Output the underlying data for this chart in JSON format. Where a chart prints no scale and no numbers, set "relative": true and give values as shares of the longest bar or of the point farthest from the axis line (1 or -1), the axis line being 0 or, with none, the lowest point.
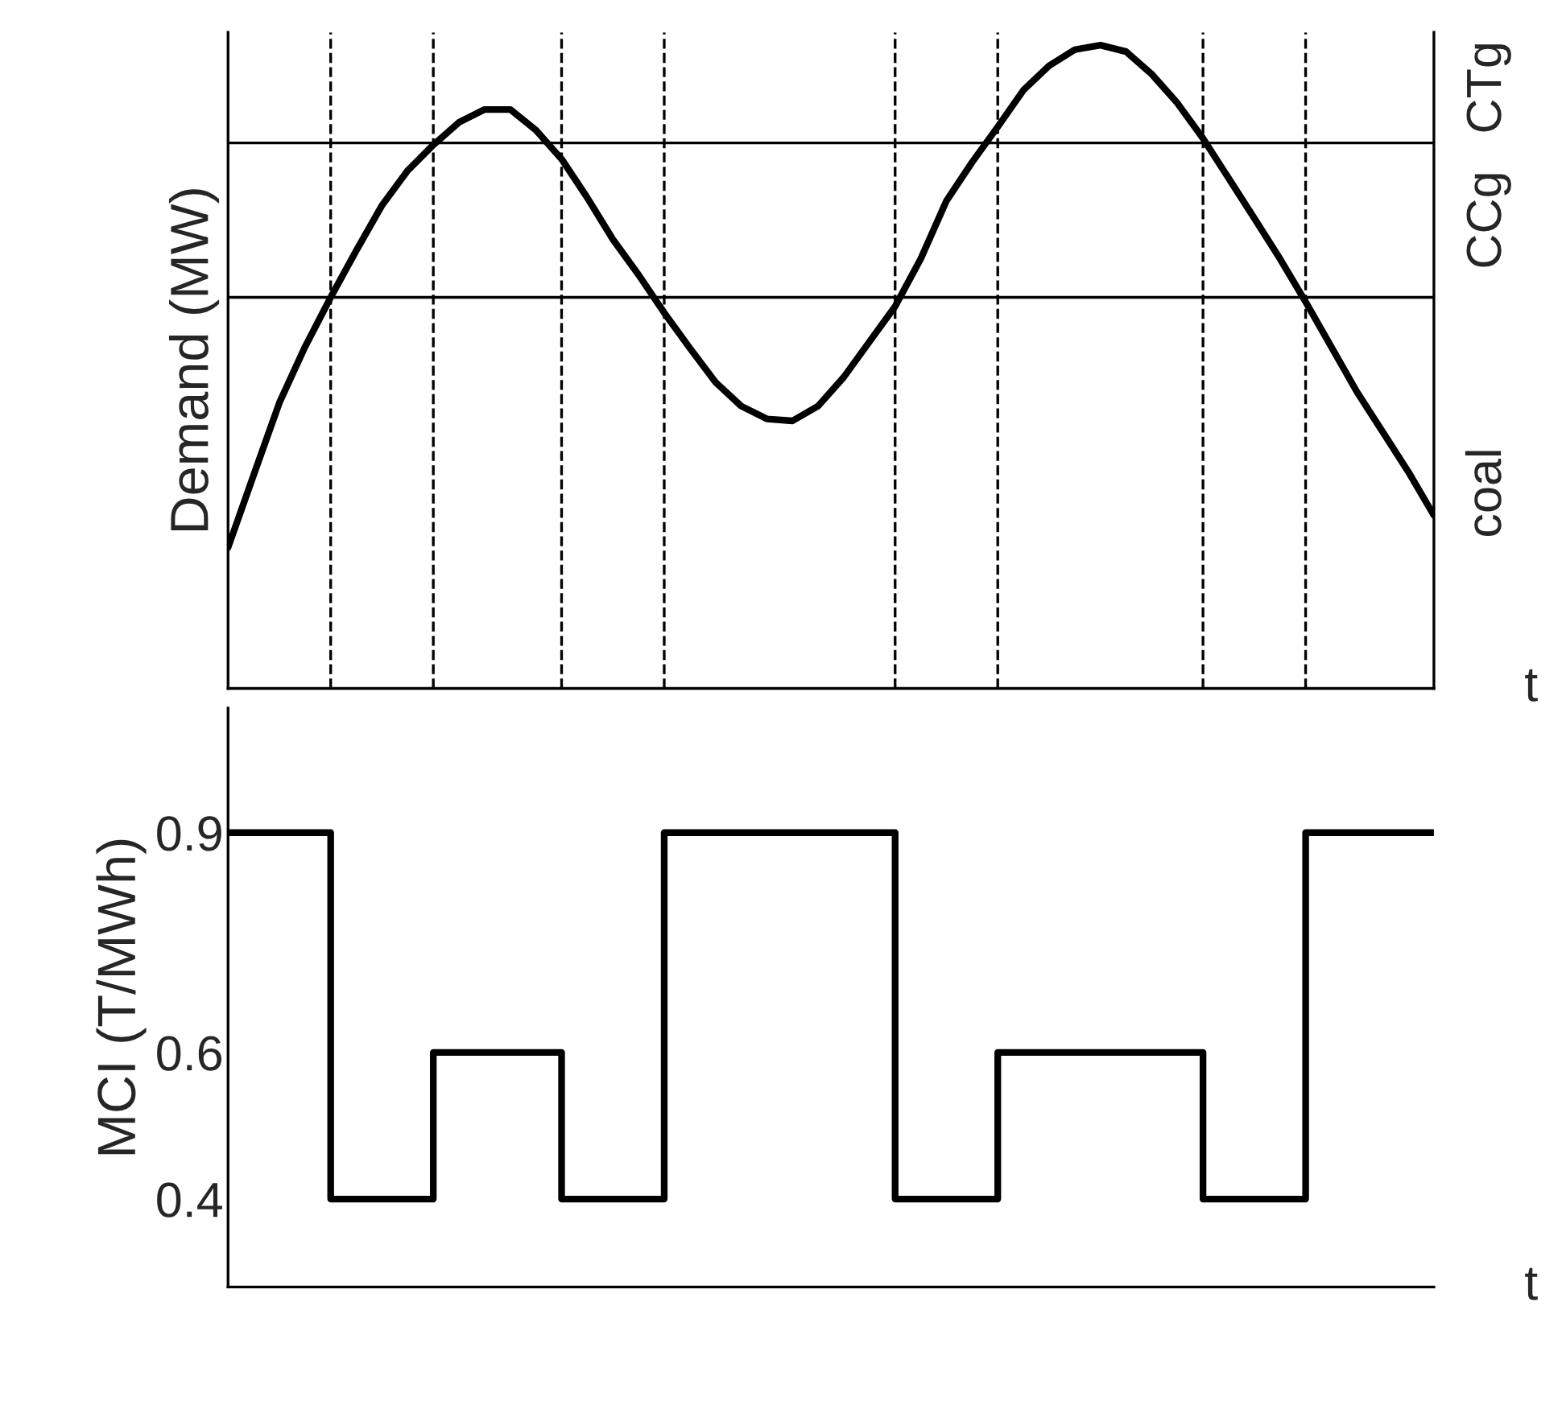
{
  "chart_data": [
    {
      "type": "line",
      "relative": true,
      "ylabel": "Demand (MW)",
      "xlabel": "t",
      "tick_labels": false,
      "grid": "x",
      "legend": false,
      "categories": [
        null,
        null,
        null,
        null,
        null,
        null,
        null,
        null,
        null,
        null,
        null,
        null,
        null,
        null,
        null,
        null,
        null,
        null,
        null,
        null,
        null,
        null,
        null,
        null,
        null,
        null,
        null,
        null,
        null,
        null,
        null,
        null,
        null,
        null,
        null,
        null,
        null,
        null,
        null,
        null,
        null,
        null,
        null,
        null,
        null,
        null,
        null,
        null
      ],
      "series": [
        {
          "color": "#000000",
          "values": [
            0.219,
            0.332,
            0.444,
            0.531,
            0.608,
            0.681,
            0.751,
            0.805,
            0.845,
            0.88,
            0.9,
            0.9,
            0.868,
            0.823,
            0.763,
            0.698,
            0.643,
            0.584,
            0.529,
            0.476,
            0.439,
            0.419,
            0.416,
            0.439,
            0.484,
            0.539,
            0.594,
            0.668,
            0.758,
            0.818,
            0.873,
            0.93,
            0.968,
            0.993,
            1.0,
            0.99,
            0.955,
            0.91,
            0.855,
            0.793,
            0.731,
            0.668,
            0.601,
            0.531,
            0.461,
            0.399,
            0.337,
            0.269
          ]
        }
      ],
      "ref_lines": [
        {
          "axis": "y",
          "value": 0.608,
          "color": "#000000",
          "line_style": "solid"
        },
        {
          "axis": "y",
          "value": 0.848,
          "color": "#000000",
          "line_style": "solid"
        }
      ],
      "annotations": [
        "coal",
        "CCg",
        "CTg"
      ]
    },
    {
      "type": "step",
      "ylabel": "MCI (T/MWh)",
      "xlabel": "t",
      "ylim": [
        0.28,
        1.07
      ],
      "yticks": [
        0.4,
        0.6,
        0.9
      ],
      "tick_labels": "y",
      "grid": false,
      "legend": false,
      "categories": [
        null,
        null,
        null,
        null,
        null,
        null,
        null,
        null,
        null,
        null,
        null,
        null,
        null,
        null,
        null,
        null,
        null,
        null,
        null,
        null,
        null,
        null,
        null,
        null,
        null,
        null,
        null,
        null,
        null,
        null,
        null,
        null,
        null,
        null,
        null,
        null,
        null,
        null,
        null,
        null,
        null,
        null,
        null,
        null,
        null,
        null,
        null,
        null
      ],
      "series": [
        {
          "color": "#000000",
          "values": [
            0.9,
            0.9,
            0.9,
            0.9,
            0.4,
            0.4,
            0.4,
            0.4,
            0.6,
            0.6,
            0.6,
            0.6,
            0.6,
            0.4,
            0.4,
            0.4,
            0.4,
            0.9,
            0.9,
            0.9,
            0.9,
            0.9,
            0.9,
            0.9,
            0.9,
            0.9,
            0.4,
            0.4,
            0.4,
            0.4,
            0.6,
            0.6,
            0.6,
            0.6,
            0.6,
            0.6,
            0.6,
            0.6,
            0.4,
            0.4,
            0.4,
            0.4,
            0.9,
            0.9,
            0.9,
            0.9,
            0.9,
            0.9
          ]
        }
      ]
    }
  ]
}
